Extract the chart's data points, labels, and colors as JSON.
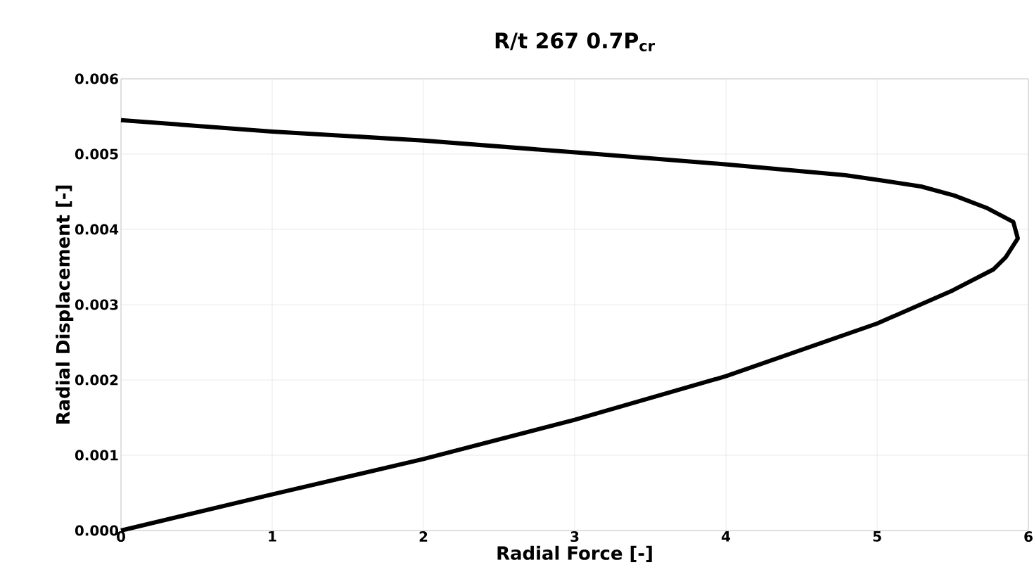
{
  "chart_data": {
    "type": "line",
    "title": "R/t 267 0.7P$_{cr}$",
    "xlabel": "Radial Force [-]",
    "ylabel": "Radial Displacement [-]",
    "series": [
      {
        "color": "#000000",
        "x": [
          0,
          1,
          2,
          3,
          4,
          5,
          5.5,
          5.77,
          5.85,
          5.93,
          5.9,
          5.73,
          5.51,
          5.29,
          5.03,
          4.79,
          4.02,
          3.02,
          2,
          1,
          0
        ],
        "values": [
          0,
          0.00048,
          0.00095,
          0.00147,
          0.00205,
          0.00275,
          0.00319,
          0.00347,
          0.00363,
          0.00388,
          0.0041,
          0.00428,
          0.00445,
          0.00457,
          0.00465,
          0.00472,
          0.00486,
          0.00502,
          0.00518,
          0.0053,
          0.00545
        ]
      }
    ],
    "xlim": [
      0,
      6
    ],
    "ylim": [
      0,
      0.006
    ],
    "xticks": [
      0,
      1,
      2,
      3,
      4,
      5,
      6
    ],
    "yticks": [
      {
        "value": 0,
        "label": "0.000"
      },
      {
        "value": 0.001,
        "label": "0.001"
      },
      {
        "value": 0.002,
        "label": "0.002"
      },
      {
        "value": 0.003,
        "label": "0.003"
      },
      {
        "value": 0.004,
        "label": "0.004"
      },
      {
        "value": 0.005,
        "label": "0.005"
      },
      {
        "value": 0.006,
        "label": "0.006"
      }
    ],
    "grid": true,
    "marker": "none",
    "line_style": "solid"
  }
}
